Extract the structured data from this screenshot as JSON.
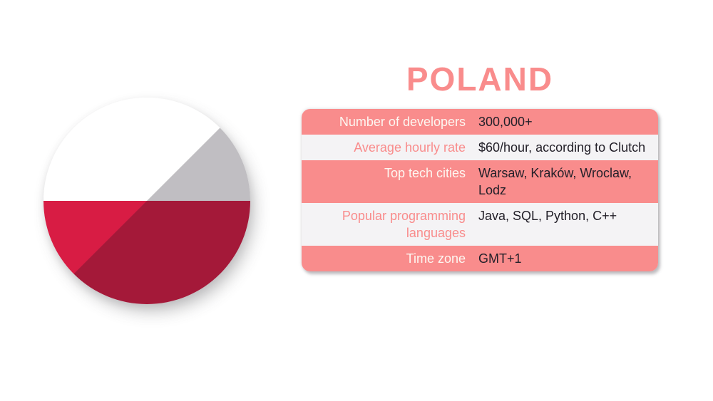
{
  "title": "POLAND",
  "flag": {
    "name": "poland-flag-circle",
    "colors": {
      "white": "#ffffff",
      "red": "#d81c44",
      "shaded_white": "#b2aeb2",
      "shaded_red": "#a51c38"
    }
  },
  "colors": {
    "accent_coral": "#f98c8c",
    "light_row": "#f4f3f5",
    "dark_text": "#232029",
    "label_on_coral": "#fdf7f1",
    "background": "#ffffff"
  },
  "table": {
    "rows": [
      {
        "label": "Number of developers",
        "value": "300,000+"
      },
      {
        "label": "Average hourly rate",
        "value": "$60/hour, according to Clutch"
      },
      {
        "label": "Top tech cities",
        "value": "Warsaw, Kraków, Wroclaw, Lodz"
      },
      {
        "label": "Popular programming languages",
        "value": "Java, SQL, Python, C++"
      },
      {
        "label": "Time zone",
        "value": "GMT+1"
      }
    ]
  }
}
